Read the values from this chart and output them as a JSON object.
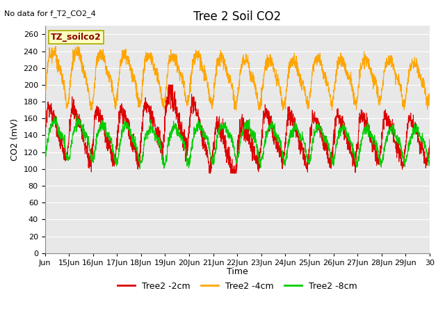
{
  "title": "Tree 2 Soil CO2",
  "no_data_text": "No data for f_T2_CO2_4",
  "ylabel": "CO2 (mV)",
  "xlabel": "Time",
  "legend_label": "TZ_soilco2",
  "ylim": [
    0,
    270
  ],
  "yticks": [
    0,
    20,
    40,
    60,
    80,
    100,
    120,
    140,
    160,
    180,
    200,
    220,
    240,
    260
  ],
  "xtick_labels": [
    "Jun",
    "15Jun",
    "16Jun",
    "17Jun",
    "18Jun",
    "19Jun",
    "20Jun",
    "21Jun",
    "22Jun",
    "23Jun",
    "24Jun",
    "25Jun",
    "26Jun",
    "27Jun",
    "28Jun",
    "29Jun",
    "30"
  ],
  "series": {
    "red": {
      "label": "Tree2 -2cm",
      "color": "#DD0000"
    },
    "orange": {
      "label": "Tree2 -4cm",
      "color": "#FFA500"
    },
    "green": {
      "label": "Tree2 -8cm",
      "color": "#00CC00"
    }
  },
  "plot_bg_color": "#E8E8E8",
  "grid_color": "#FFFFFF",
  "legend_box_color": "#FFFFC0",
  "legend_box_border": "#AAAA00"
}
